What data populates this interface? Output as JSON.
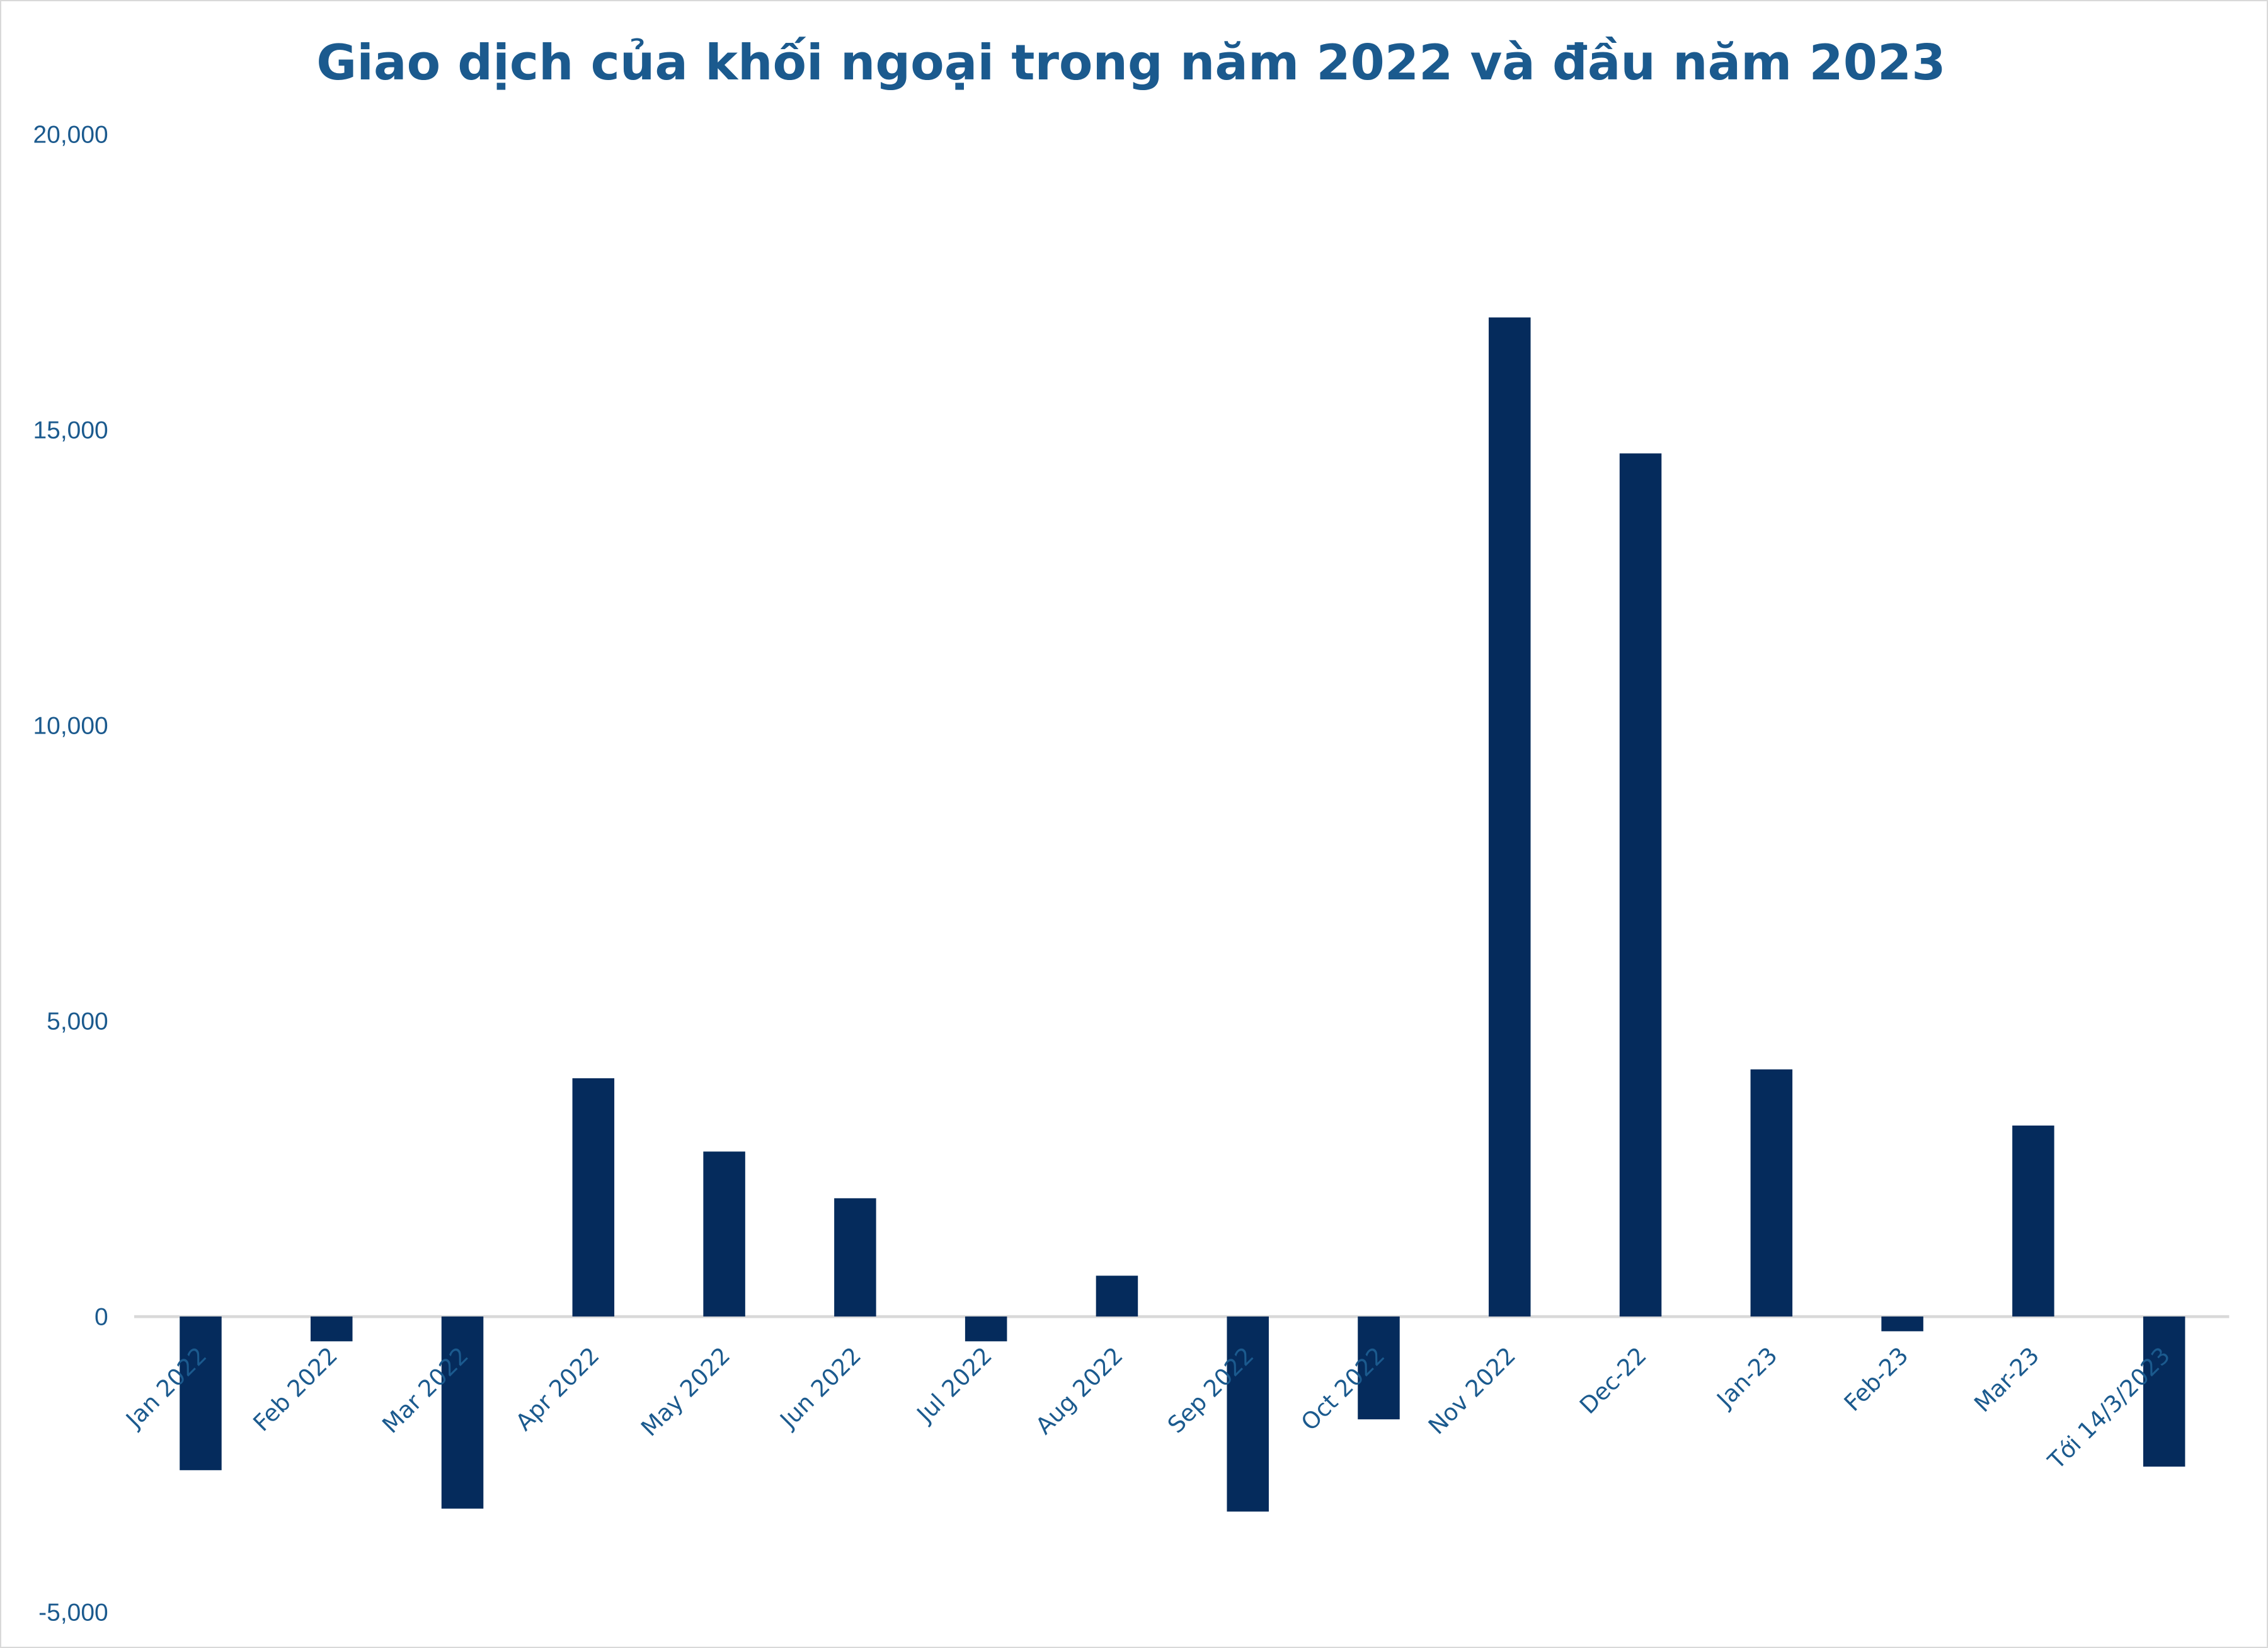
{
  "chart_data": {
    "type": "bar",
    "title": "Giao dịch của khối ngoại trong năm 2022 và đầu năm 2023",
    "xlabel": "",
    "ylabel": "",
    "ylim": [
      -5000,
      20000
    ],
    "yticks": [
      -5000,
      0,
      5000,
      10000,
      15000,
      20000
    ],
    "ytick_labels": [
      "-5,000",
      "0",
      "5,000",
      "10,000",
      "15,000",
      "20,000"
    ],
    "grid": false,
    "legend": "none",
    "bar_color": "#052b5c",
    "text_color": "#1b5a8e",
    "categories": [
      "Jan 2022",
      "Feb 2022",
      "Mar 2022",
      "Apr 2022",
      "May 2022",
      "Jun 2022",
      "Jul 2022",
      "Aug 2022",
      "Sep 2022",
      "Oct 2022",
      "Nov 2022",
      "Dec-22",
      "Jan-23",
      "Feb-23",
      "Mar-23",
      "Tới 14/3/2023"
    ],
    "values": [
      -2600,
      -420,
      -3250,
      4030,
      2790,
      2000,
      -420,
      690,
      -3300,
      -1740,
      16900,
      14600,
      4180,
      -250,
      3230,
      -2540
    ]
  }
}
